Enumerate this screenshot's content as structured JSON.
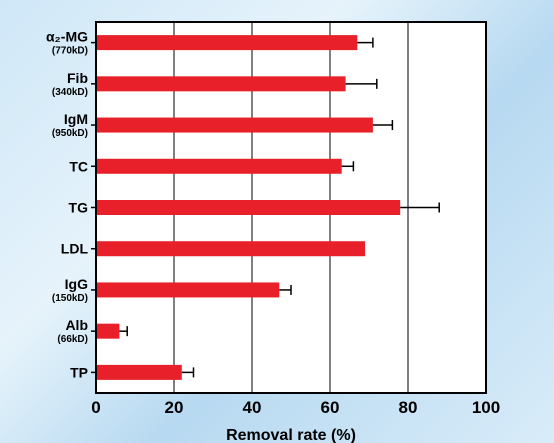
{
  "chart_data": {
    "type": "bar",
    "orientation": "horizontal",
    "title": "",
    "xlabel": "Removal rate (%)",
    "ylabel": "",
    "xlim": [
      0,
      100
    ],
    "xticks": [
      0,
      20,
      40,
      60,
      80,
      100
    ],
    "grid": "vertical lines",
    "bar_color": "#e8202a",
    "categories": [
      {
        "name": "α₂-MG",
        "sub": "(770kD)",
        "value": 67,
        "error": 4
      },
      {
        "name": "Fib",
        "sub": "(340kD)",
        "value": 64,
        "error": 8
      },
      {
        "name": "IgM",
        "sub": "(950kD)",
        "value": 71,
        "error": 5
      },
      {
        "name": "TC",
        "sub": "",
        "value": 63,
        "error": 3
      },
      {
        "name": "TG",
        "sub": "",
        "value": 78,
        "error": 10
      },
      {
        "name": "LDL",
        "sub": "",
        "value": 69,
        "error": null
      },
      {
        "name": "IgG",
        "sub": "(150kD)",
        "value": 47,
        "error": 3
      },
      {
        "name": "Alb",
        "sub": "(66kD)",
        "value": 6,
        "error": 2
      },
      {
        "name": "TP",
        "sub": "",
        "value": 22,
        "error": 3
      }
    ]
  }
}
